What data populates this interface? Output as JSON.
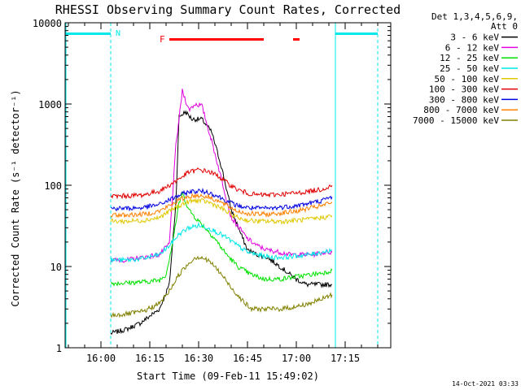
{
  "chart_data": {
    "type": "line",
    "title": "RHESSI Observing Summary Count Rates, Corrected",
    "xlabel": "Start Time (09-Feb-11 15:49:02)",
    "ylabel": "Corrected Count Rate (s⁻¹ detector⁻¹)",
    "x_axis": {
      "start": "15:49",
      "end": "17:29",
      "ticks": [
        "16:00",
        "16:15",
        "16:30",
        "16:45",
        "17:00",
        "17:15"
      ]
    },
    "y_axis": {
      "scale": "log",
      "ylim": [
        1,
        10000
      ],
      "ticks": [
        "1",
        "10",
        "100",
        "1000",
        "10000"
      ]
    },
    "legend": {
      "placement": "right-outside",
      "header": [
        "Det 1,3,4,5,6,9,",
        "Att 0"
      ],
      "entries": [
        {
          "label": "3 - 6 keV",
          "color": "#000000"
        },
        {
          "label": "6 - 12 keV",
          "color": "#e000e0"
        },
        {
          "label": "12 - 25 keV",
          "color": "#00e000"
        },
        {
          "label": "25 - 50 keV",
          "color": "#00e8e8"
        },
        {
          "label": "50 - 100 keV",
          "color": "#e0c800"
        },
        {
          "label": "100 - 300 keV",
          "color": "#e00000"
        },
        {
          "label": "300 - 800 keV",
          "color": "#0000e0"
        },
        {
          "label": "800 - 7000 keV",
          "color": "#ff8000"
        },
        {
          "label": "7000 - 15000 keV",
          "color": "#808000"
        }
      ]
    },
    "annotations": {
      "night_marker": "N",
      "flare_marker": "F",
      "night_color": "#00e8e8",
      "flare_color": "#ff0000",
      "night_intervals": [
        [
          "15:49",
          "16:03"
        ],
        [
          "17:12",
          "17:25"
        ]
      ],
      "flare_intervals": [
        [
          "16:21",
          "16:50"
        ],
        [
          "16:59",
          "17:01"
        ]
      ],
      "saa_lines": [
        "16:03",
        "17:12",
        "17:25"
      ]
    },
    "series": [
      {
        "name": "3 - 6 keV",
        "color": "#000000",
        "points": [
          [
            "16:03",
            1.5
          ],
          [
            "16:08",
            1.7
          ],
          [
            "16:12",
            2
          ],
          [
            "16:18",
            3
          ],
          [
            "16:21",
            6
          ],
          [
            "16:23",
            60
          ],
          [
            "16:24",
            700
          ],
          [
            "16:26",
            800
          ],
          [
            "16:28",
            650
          ],
          [
            "16:31",
            650
          ],
          [
            "16:34",
            450
          ],
          [
            "16:37",
            170
          ],
          [
            "16:40",
            50
          ],
          [
            "16:43",
            25
          ],
          [
            "16:45",
            16
          ],
          [
            "16:48",
            14
          ],
          [
            "16:51",
            13
          ],
          [
            "16:55",
            10
          ],
          [
            "16:58",
            8
          ],
          [
            "17:00",
            7
          ],
          [
            "17:03",
            6
          ],
          [
            "17:06",
            6
          ],
          [
            "17:09",
            6
          ],
          [
            "17:11",
            6
          ]
        ]
      },
      {
        "name": "6 - 12 keV",
        "color": "#e000e0",
        "points": [
          [
            "16:03",
            12
          ],
          [
            "16:08",
            12
          ],
          [
            "16:13",
            13
          ],
          [
            "16:18",
            14
          ],
          [
            "16:21",
            19
          ],
          [
            "16:23",
            300
          ],
          [
            "16:25",
            1450
          ],
          [
            "16:27",
            850
          ],
          [
            "16:29",
            1000
          ],
          [
            "16:31",
            950
          ],
          [
            "16:34",
            350
          ],
          [
            "16:37",
            120
          ],
          [
            "16:40",
            40
          ],
          [
            "16:43",
            28
          ],
          [
            "16:45",
            22
          ],
          [
            "16:48",
            18
          ],
          [
            "16:51",
            16
          ],
          [
            "16:55",
            15
          ],
          [
            "16:58",
            14
          ],
          [
            "17:01",
            14
          ],
          [
            "17:05",
            14
          ],
          [
            "17:09",
            15
          ],
          [
            "17:11",
            15
          ]
        ]
      },
      {
        "name": "12 - 25 keV",
        "color": "#00e000",
        "points": [
          [
            "16:03",
            6.2
          ],
          [
            "16:08",
            6.3
          ],
          [
            "16:14",
            6.5
          ],
          [
            "16:18",
            6.8
          ],
          [
            "16:20",
            8
          ],
          [
            "16:22",
            20
          ],
          [
            "16:24",
            60
          ],
          [
            "16:25",
            80
          ],
          [
            "16:27",
            50
          ],
          [
            "16:29",
            40
          ],
          [
            "16:32",
            30
          ],
          [
            "16:35",
            22
          ],
          [
            "16:38",
            15
          ],
          [
            "16:42",
            10
          ],
          [
            "16:46",
            8
          ],
          [
            "16:50",
            7
          ],
          [
            "16:55",
            7
          ],
          [
            "17:00",
            7.5
          ],
          [
            "17:05",
            8
          ],
          [
            "17:09",
            8.5
          ],
          [
            "17:11",
            9
          ]
        ]
      },
      {
        "name": "25 - 50 keV",
        "color": "#00e8e8",
        "points": [
          [
            "16:03",
            12
          ],
          [
            "16:08",
            12
          ],
          [
            "16:13",
            12.5
          ],
          [
            "16:18",
            14
          ],
          [
            "16:21",
            18
          ],
          [
            "16:24",
            25
          ],
          [
            "16:27",
            30
          ],
          [
            "16:30",
            32
          ],
          [
            "16:33",
            30
          ],
          [
            "16:36",
            26
          ],
          [
            "16:39",
            22
          ],
          [
            "16:42",
            18
          ],
          [
            "16:45",
            15
          ],
          [
            "16:48",
            14
          ],
          [
            "16:52",
            13
          ],
          [
            "16:56",
            13
          ],
          [
            "17:00",
            13.5
          ],
          [
            "17:04",
            14
          ],
          [
            "17:08",
            15
          ],
          [
            "17:11",
            16
          ]
        ]
      },
      {
        "name": "50 - 100 keV",
        "color": "#e0c800",
        "points": [
          [
            "16:03",
            36
          ],
          [
            "16:08",
            36
          ],
          [
            "16:13",
            37
          ],
          [
            "16:18",
            40
          ],
          [
            "16:21",
            48
          ],
          [
            "16:24",
            56
          ],
          [
            "16:27",
            63
          ],
          [
            "16:30",
            65
          ],
          [
            "16:33",
            62
          ],
          [
            "16:36",
            55
          ],
          [
            "16:39",
            46
          ],
          [
            "16:42",
            40
          ],
          [
            "16:45",
            37
          ],
          [
            "16:48",
            36
          ],
          [
            "16:52",
            36
          ],
          [
            "16:56",
            36
          ],
          [
            "17:00",
            37
          ],
          [
            "17:04",
            38
          ],
          [
            "17:08",
            40
          ],
          [
            "17:11",
            42
          ]
        ]
      },
      {
        "name": "100 - 300 keV",
        "color": "#e00000",
        "points": [
          [
            "16:03",
            73
          ],
          [
            "16:08",
            74
          ],
          [
            "16:13",
            76
          ],
          [
            "16:18",
            85
          ],
          [
            "16:21",
            100
          ],
          [
            "16:24",
            120
          ],
          [
            "16:27",
            145
          ],
          [
            "16:30",
            155
          ],
          [
            "16:33",
            148
          ],
          [
            "16:36",
            130
          ],
          [
            "16:39",
            105
          ],
          [
            "16:42",
            88
          ],
          [
            "16:45",
            80
          ],
          [
            "16:48",
            76
          ],
          [
            "16:52",
            76
          ],
          [
            "16:56",
            78
          ],
          [
            "17:00",
            80
          ],
          [
            "17:04",
            84
          ],
          [
            "17:08",
            90
          ],
          [
            "17:11",
            100
          ]
        ]
      },
      {
        "name": "300 - 800 keV",
        "color": "#0000e0",
        "points": [
          [
            "16:03",
            52
          ],
          [
            "16:08",
            52
          ],
          [
            "16:13",
            53
          ],
          [
            "16:18",
            58
          ],
          [
            "16:21",
            66
          ],
          [
            "16:24",
            75
          ],
          [
            "16:27",
            83
          ],
          [
            "16:30",
            85
          ],
          [
            "16:33",
            82
          ],
          [
            "16:36",
            73
          ],
          [
            "16:39",
            63
          ],
          [
            "16:42",
            56
          ],
          [
            "16:45",
            53
          ],
          [
            "16:48",
            52
          ],
          [
            "16:52",
            52
          ],
          [
            "16:56",
            54
          ],
          [
            "17:00",
            56
          ],
          [
            "17:04",
            60
          ],
          [
            "17:08",
            65
          ],
          [
            "17:11",
            72
          ]
        ]
      },
      {
        "name": "800 - 7000 keV",
        "color": "#ff8000",
        "points": [
          [
            "16:03",
            43
          ],
          [
            "16:08",
            43
          ],
          [
            "16:13",
            44
          ],
          [
            "16:18",
            48
          ],
          [
            "16:21",
            56
          ],
          [
            "16:24",
            66
          ],
          [
            "16:27",
            73
          ],
          [
            "16:30",
            75
          ],
          [
            "16:33",
            72
          ],
          [
            "16:36",
            64
          ],
          [
            "16:39",
            55
          ],
          [
            "16:42",
            48
          ],
          [
            "16:45",
            45
          ],
          [
            "16:48",
            44
          ],
          [
            "16:52",
            44
          ],
          [
            "16:56",
            46
          ],
          [
            "17:00",
            48
          ],
          [
            "17:04",
            52
          ],
          [
            "17:08",
            56
          ],
          [
            "17:11",
            62
          ]
        ]
      },
      {
        "name": "7000 - 15000 keV",
        "color": "#808000",
        "points": [
          [
            "16:03",
            2.5
          ],
          [
            "16:08",
            2.6
          ],
          [
            "16:13",
            2.8
          ],
          [
            "16:18",
            3.5
          ],
          [
            "16:21",
            5
          ],
          [
            "16:24",
            8
          ],
          [
            "16:27",
            11
          ],
          [
            "16:29",
            13
          ],
          [
            "16:31",
            13
          ],
          [
            "16:34",
            11
          ],
          [
            "16:37",
            8
          ],
          [
            "16:40",
            5.5
          ],
          [
            "16:43",
            4
          ],
          [
            "16:46",
            3
          ],
          [
            "16:50",
            3
          ],
          [
            "16:55",
            3
          ],
          [
            "17:00",
            3.2
          ],
          [
            "17:04",
            3.5
          ],
          [
            "17:08",
            4
          ],
          [
            "17:11",
            4.5
          ]
        ]
      }
    ]
  },
  "footer": {
    "timestamp": "14-Oct-2021 03:33"
  }
}
